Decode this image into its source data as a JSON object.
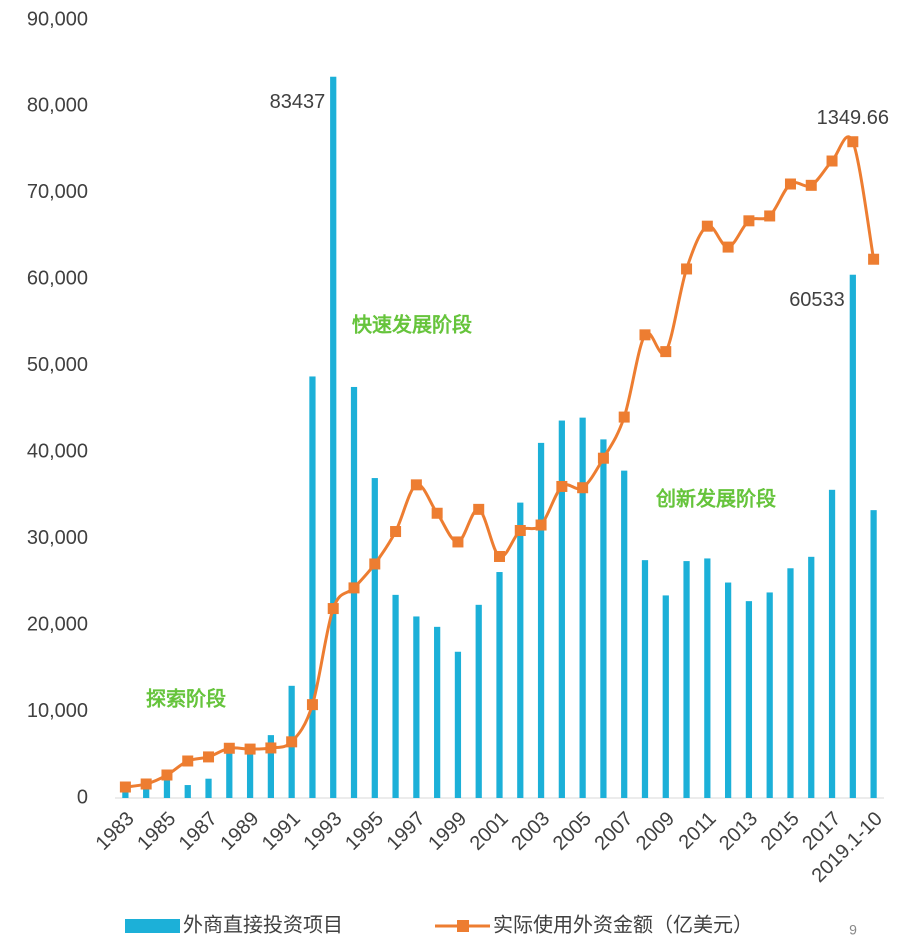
{
  "chart_data": {
    "type": "bar-line",
    "categories": [
      "1983",
      null,
      "1985",
      null,
      "1987",
      null,
      "1989",
      null,
      "1991",
      null,
      "1993",
      null,
      "1995",
      null,
      "1997",
      null,
      "1999",
      null,
      "2001",
      null,
      "2003",
      null,
      "2005",
      null,
      "2007",
      null,
      "2009",
      null,
      "2011",
      null,
      "2013",
      null,
      "2015",
      null,
      "2017",
      null,
      "2019.1-10"
    ],
    "series": [
      {
        "name": "外商直接投资项目",
        "type": "bar",
        "color": "#1cb0d8",
        "values": [
          638,
          1856,
          3073,
          1498,
          2233,
          5945,
          5779,
          7273,
          12978,
          48764,
          83437,
          47549,
          37011,
          23500,
          21001,
          19799,
          16918,
          22347,
          26140,
          34171,
          41081,
          43664,
          44001,
          41485,
          37871,
          27514,
          23435,
          27406,
          27712,
          24925,
          22773,
          23778,
          26575,
          27900,
          35652,
          60533,
          33300
        ],
        "value_labels": [
          null,
          null,
          null,
          null,
          null,
          null,
          null,
          null,
          null,
          null,
          "83437",
          null,
          null,
          null,
          null,
          null,
          null,
          null,
          null,
          null,
          null,
          null,
          null,
          null,
          null,
          null,
          null,
          null,
          null,
          null,
          null,
          null,
          null,
          null,
          null,
          "60533",
          null
        ]
      },
      {
        "name": "实际使用外资金额（亿美元）",
        "type": "line",
        "axis": "y2",
        "color": "#ed7d31",
        "values": [
          22.6,
          28.8,
          47.3,
          76.1,
          84.5,
          102.3,
          100.6,
          102.9,
          115.5,
          192,
          389.6,
          432.1,
          481.3,
          548,
          644,
          585.6,
          526.6,
          593.6,
          496.7,
          550.1,
          561.4,
          640.7,
          638.1,
          698.8,
          783.4,
          952.5,
          918,
          1088,
          1176,
          1133,
          1187,
          1197,
          1262.7,
          1260,
          1310,
          1349.66,
          1108
        ],
        "value_labels": [
          null,
          null,
          null,
          null,
          null,
          null,
          null,
          null,
          null,
          null,
          null,
          null,
          null,
          null,
          null,
          null,
          null,
          null,
          null,
          null,
          null,
          null,
          null,
          null,
          null,
          null,
          null,
          null,
          null,
          null,
          null,
          null,
          null,
          null,
          null,
          "1349.66",
          null
        ]
      }
    ],
    "ylim": [
      0,
      90000
    ],
    "yticks": [
      0,
      {
        "value": 10000,
        "label": "10,000"
      },
      {
        "value": 20000,
        "label": "20,000"
      },
      {
        "value": 30000,
        "label": "30,000"
      },
      {
        "value": 40000,
        "label": "40,000"
      },
      {
        "value": 50000,
        "label": "50,000"
      },
      {
        "value": 60000,
        "label": "60,000"
      },
      {
        "value": 70000,
        "label": "70,000"
      },
      {
        "value": 80000,
        "label": "80,000"
      },
      {
        "value": 90000,
        "label": "90,000"
      }
    ],
    "y2lim": [
      0,
      1600
    ],
    "grid": false,
    "legend": "bottom",
    "annotations": [
      "探索阶段",
      "快速发展阶段",
      "创新发展阶段"
    ],
    "page_number": "9"
  }
}
